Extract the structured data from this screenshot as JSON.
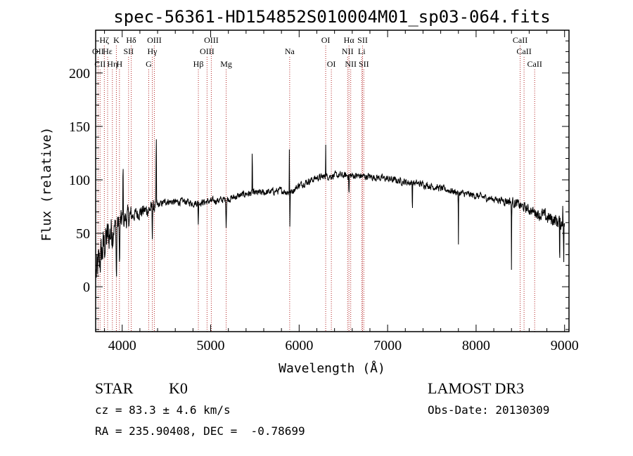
{
  "chart_data": {
    "type": "line",
    "title": "spec-56361-HD154852S010004M01_sp03-064.fits",
    "xlabel": "Wavelength (Å)",
    "ylabel": "Flux (relative)",
    "xlim": [
      3700,
      9050
    ],
    "ylim": [
      -42,
      240
    ],
    "xticks": [
      4000,
      5000,
      6000,
      7000,
      8000,
      9000
    ],
    "yticks": [
      0,
      50,
      100,
      150,
      200
    ],
    "continuum": [
      [
        3700,
        10
      ],
      [
        3750,
        25
      ],
      [
        3800,
        40
      ],
      [
        3850,
        48
      ],
      [
        3900,
        55
      ],
      [
        3950,
        58
      ],
      [
        4000,
        62
      ],
      [
        4100,
        66
      ],
      [
        4200,
        70
      ],
      [
        4300,
        72
      ],
      [
        4400,
        76
      ],
      [
        4500,
        80
      ],
      [
        4600,
        79
      ],
      [
        4700,
        80
      ],
      [
        4800,
        78
      ],
      [
        4900,
        79
      ],
      [
        5000,
        80
      ],
      [
        5200,
        82
      ],
      [
        5400,
        87
      ],
      [
        5600,
        88
      ],
      [
        5800,
        90
      ],
      [
        5900,
        88
      ],
      [
        6000,
        95
      ],
      [
        6200,
        102
      ],
      [
        6400,
        104
      ],
      [
        6600,
        104
      ],
      [
        6800,
        103
      ],
      [
        7000,
        101
      ],
      [
        7200,
        98
      ],
      [
        7400,
        96
      ],
      [
        7600,
        92
      ],
      [
        7800,
        88
      ],
      [
        8000,
        85
      ],
      [
        8200,
        82
      ],
      [
        8400,
        80
      ],
      [
        8600,
        72
      ],
      [
        8800,
        65
      ],
      [
        8900,
        62
      ],
      [
        9000,
        58
      ]
    ],
    "features": [
      {
        "x": 3935,
        "depth": 55,
        "width": 6
      },
      {
        "x": 3970,
        "depth": 45,
        "width": 6
      },
      {
        "x": 4010,
        "depth": -70,
        "width": 3
      },
      {
        "x": 4340,
        "depth": 30,
        "width": 4
      },
      {
        "x": 4385,
        "depth": -80,
        "width": 3
      },
      {
        "x": 4860,
        "depth": 20,
        "width": 4
      },
      {
        "x": 5175,
        "depth": 25,
        "width": 6
      },
      {
        "x": 5470,
        "depth": -50,
        "width": 3
      },
      {
        "x": 5895,
        "depth": 30,
        "width": 5
      },
      {
        "x": 5890,
        "depth": -55,
        "width": 3
      },
      {
        "x": 6300,
        "depth": -30,
        "width": 3
      },
      {
        "x": 6563,
        "depth": 20,
        "width": 4
      },
      {
        "x": 7280,
        "depth": 30,
        "width": 3
      },
      {
        "x": 7800,
        "depth": 50,
        "width": 3
      },
      {
        "x": 8400,
        "depth": 65,
        "width": 3
      },
      {
        "x": 8945,
        "depth": 50,
        "width": 3
      },
      {
        "x": 8980,
        "depth": -30,
        "width": 3
      },
      {
        "x": 8990,
        "depth": 45,
        "width": 3
      }
    ],
    "line_markers": [
      {
        "x": 3727,
        "label": "OII",
        "row": 2
      },
      {
        "x": 3750,
        "label": "CII",
        "row": 3
      },
      {
        "x": 3798,
        "label": "Hζ",
        "row": 1
      },
      {
        "x": 3835,
        "label": "Hε",
        "row": 2
      },
      {
        "x": 3889,
        "label": "Hη",
        "row": 3
      },
      {
        "x": 3934,
        "label": "K",
        "row": 1
      },
      {
        "x": 3969,
        "label": "H",
        "row": 3
      },
      {
        "x": 4072,
        "label": "SII",
        "row": 2
      },
      {
        "x": 4102,
        "label": "Hδ",
        "row": 1
      },
      {
        "x": 4300,
        "label": "G",
        "row": 3
      },
      {
        "x": 4340,
        "label": "Hγ",
        "row": 2
      },
      {
        "x": 4363,
        "label": "OIII",
        "row": 1
      },
      {
        "x": 4861,
        "label": "Hβ",
        "row": 3
      },
      {
        "x": 4959,
        "label": "OIII",
        "row": 2
      },
      {
        "x": 5007,
        "label": "OIII",
        "row": 1
      },
      {
        "x": 5175,
        "label": "Mg",
        "row": 3
      },
      {
        "x": 5893,
        "label": "Na",
        "row": 2
      },
      {
        "x": 6300,
        "label": "OI",
        "row": 1
      },
      {
        "x": 6364,
        "label": "OI",
        "row": 3
      },
      {
        "x": 6548,
        "label": "NII",
        "row": 2
      },
      {
        "x": 6563,
        "label": "Hα",
        "row": 1
      },
      {
        "x": 6583,
        "label": "NII",
        "row": 3
      },
      {
        "x": 6707,
        "label": "Li",
        "row": 2
      },
      {
        "x": 6717,
        "label": "SII",
        "row": 1
      },
      {
        "x": 6731,
        "label": "SII",
        "row": 3
      },
      {
        "x": 8498,
        "label": "CaII",
        "row": 1
      },
      {
        "x": 8542,
        "label": "CaII",
        "row": 2
      },
      {
        "x": 8662,
        "label": "CaII",
        "row": 3
      }
    ]
  },
  "info": {
    "class": "STAR",
    "subclass": "K0",
    "survey": "LAMOST DR3",
    "cz": "cz = 83.3 ± 4.6 km/s",
    "obs_date": "Obs-Date: 20130309",
    "radec": "RA = 235.90408, DEC =  -0.78699"
  },
  "colors": {
    "spectrum": "#000000",
    "marker": "#b22222",
    "axes": "#000000"
  }
}
